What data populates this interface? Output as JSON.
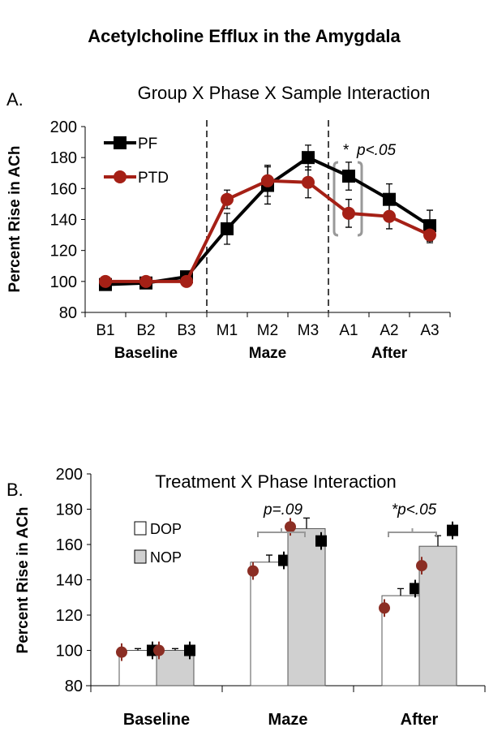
{
  "title": "Acetylcholine Efflux in the Amygdala",
  "chart_data": [
    {
      "type": "line",
      "panel_label": "A.",
      "title": "Group X Phase X Sample Interaction",
      "ylabel": "Percent Rise in ACh",
      "ylim": [
        80,
        200
      ],
      "yticks": [
        "80",
        "100",
        "120",
        "140",
        "160",
        "180",
        "200"
      ],
      "categories": [
        "B1",
        "B2",
        "B3",
        "M1",
        "M2",
        "M3",
        "A1",
        "A2",
        "A3"
      ],
      "phase_labels": [
        "Baseline",
        "Maze",
        "After"
      ],
      "series": [
        {
          "name": "PF",
          "color": "#000000",
          "marker": "square",
          "values": [
            98,
            99,
            103,
            134,
            162,
            180,
            168,
            153,
            136
          ],
          "errors": [
            2,
            2,
            2,
            10,
            12,
            8,
            9,
            10,
            10
          ]
        },
        {
          "name": "PTD",
          "color": "#A52016",
          "marker": "circle",
          "values": [
            100,
            100,
            100,
            153,
            165,
            164,
            144,
            142,
            130
          ],
          "errors": [
            2,
            2,
            2,
            6,
            10,
            10,
            9,
            8,
            5
          ]
        }
      ],
      "annotation": {
        "star": "*",
        "text": "p<.05"
      },
      "legend": "top-left"
    },
    {
      "type": "bar",
      "panel_label": "B.",
      "title": "Treatment X Phase Interaction",
      "ylabel": "Percent Rise in ACh",
      "ylim": [
        80,
        200
      ],
      "yticks": [
        "80",
        "100",
        "120",
        "140",
        "160",
        "180",
        "200"
      ],
      "categories": [
        "Baseline",
        "Maze",
        "After"
      ],
      "series": [
        {
          "name": "DOP",
          "color": "#FFFFFF",
          "values": [
            100,
            150,
            131
          ],
          "errors": [
            1,
            4,
            4
          ],
          "ptd_points": [
            99,
            145,
            124
          ],
          "pf_points": [
            100,
            151,
            135
          ]
        },
        {
          "name": "NOP",
          "color": "#D0D0D0",
          "values": [
            100,
            169,
            159
          ],
          "errors": [
            1,
            6,
            6
          ],
          "ptd_points": [
            100,
            170,
            148
          ],
          "pf_points": [
            100,
            162,
            168
          ]
        }
      ],
      "annotations": [
        "p=.09",
        "*p<.05"
      ],
      "legend": "top-left"
    }
  ]
}
